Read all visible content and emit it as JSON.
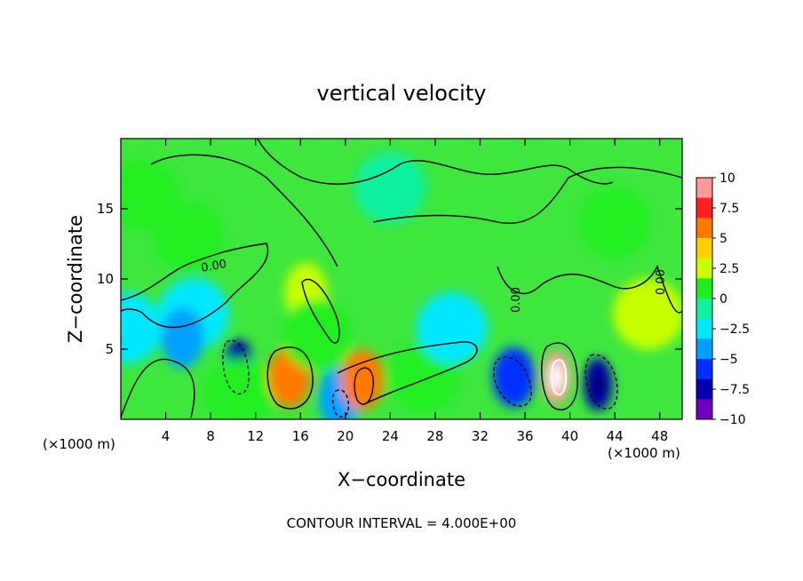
{
  "chart_data": {
    "type": "heatmap",
    "title": "vertical velocity",
    "xlabel": "X−coordinate",
    "ylabel": "Z−coordinate",
    "x_unit_label": "(×1000 m)",
    "x_unit_label_right": "(×1000 m)",
    "xlim": [
      0,
      50
    ],
    "ylim": [
      0,
      20
    ],
    "x_ticks": [
      4,
      8,
      12,
      16,
      20,
      24,
      28,
      32,
      36,
      40,
      44,
      48
    ],
    "y_ticks": [
      5,
      10,
      15
    ],
    "colorbar": {
      "levels": [
        10,
        7.5,
        5,
        2.5,
        0,
        -2.5,
        -5,
        -7.5,
        -10
      ],
      "labels": [
        "10",
        "7.5",
        "5",
        "2.5",
        "0",
        "−2.5",
        "−5",
        "−7.5",
        "−10"
      ],
      "colors": [
        "#ff9a9a",
        "#ff2020",
        "#ff7a00",
        "#ffd000",
        "#c8ff00",
        "#20ee20",
        "#10f0a0",
        "#00e8ff",
        "#00a0ff",
        "#0030ff",
        "#0000b0",
        "#7000c0"
      ]
    },
    "contour_label": "0.00",
    "contour_interval_text": "CONTOUR INTERVAL = 4.000E+00",
    "background_color": "#3ee63e",
    "cells": [
      {
        "x": 2.0,
        "z": 16.0,
        "v": 1.5
      },
      {
        "x": 6.0,
        "z": 13.0,
        "v": 1.0
      },
      {
        "x": 6.5,
        "z": 7.5,
        "v": -3.0
      },
      {
        "x": 10.5,
        "z": 3.8,
        "v": -7.5
      },
      {
        "x": 10.5,
        "z": 1.8,
        "v": 0.8
      },
      {
        "x": 15.0,
        "z": 3.0,
        "v": 5.5
      },
      {
        "x": 16.5,
        "z": 9.0,
        "v": 3.5
      },
      {
        "x": 17.5,
        "z": 6.0,
        "v": 1.5
      },
      {
        "x": 19.5,
        "z": 1.5,
        "v": -5.0
      },
      {
        "x": 21.5,
        "z": 2.8,
        "v": 5.5
      },
      {
        "x": 24.0,
        "z": 16.5,
        "v": -0.8
      },
      {
        "x": 27.0,
        "z": 3.0,
        "v": 1.2
      },
      {
        "x": 29.5,
        "z": 6.5,
        "v": -3.0
      },
      {
        "x": 35.0,
        "z": 3.0,
        "v": -5.5
      },
      {
        "x": 38.8,
        "z": 3.0,
        "v": 9.5
      },
      {
        "x": 42.5,
        "z": 2.5,
        "v": -7.5
      },
      {
        "x": 44.0,
        "z": 14.0,
        "v": 0.5
      },
      {
        "x": 47.0,
        "z": 7.5,
        "v": 2.0
      },
      {
        "x": 0.5,
        "z": 6.5,
        "v": -3.0
      },
      {
        "x": 5.5,
        "z": 5.8,
        "v": -4.0
      }
    ]
  }
}
